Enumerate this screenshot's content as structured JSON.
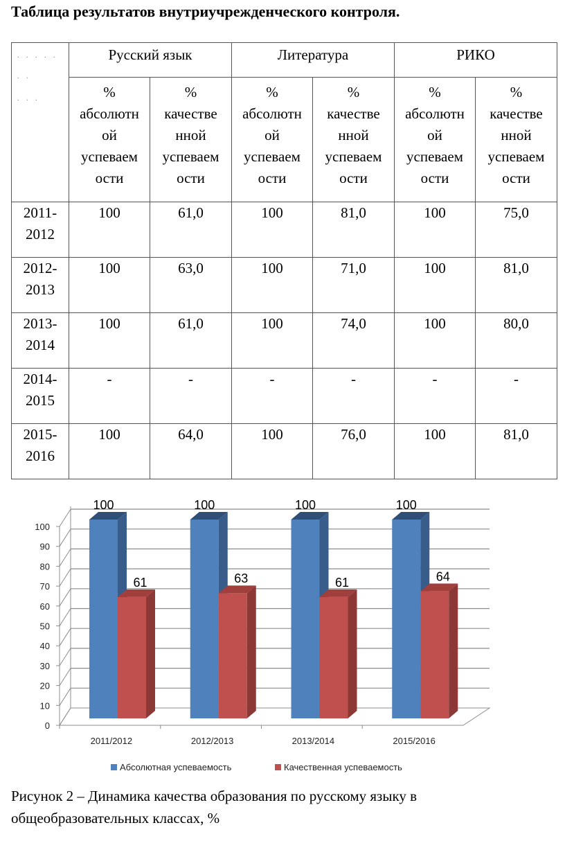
{
  "title": "Таблица результатов внутриучрежденческого контроля.",
  "table": {
    "corner_marks": [
      ". . . . .",
      ". .",
      ". . ."
    ],
    "subjects": [
      "Русский язык",
      "Литература",
      "РИКО"
    ],
    "col_headers": [
      [
        "%",
        "абсолютн",
        "ой",
        "успеваем",
        "ости"
      ],
      [
        "%",
        "качестве",
        "нной",
        "успеваем",
        "ости"
      ],
      [
        "%",
        "абсолютн",
        "ой",
        "успеваем",
        "ости"
      ],
      [
        "%",
        "качестве",
        "нной",
        "успеваем",
        "ости"
      ],
      [
        "%",
        "абсолютн",
        "ой",
        "успеваем",
        "ости"
      ],
      [
        "%",
        "качестве",
        "нной",
        "успеваем",
        "ости"
      ]
    ],
    "rows": [
      {
        "year": [
          "2011-",
          "2012"
        ],
        "cells": [
          "100",
          "61,0",
          "100",
          "81,0",
          "100",
          "75,0"
        ]
      },
      {
        "year": [
          "2012-",
          "2013"
        ],
        "cells": [
          "100",
          "63,0",
          "100",
          "71,0",
          "100",
          "81,0"
        ]
      },
      {
        "year": [
          "2013-",
          "2014"
        ],
        "cells": [
          "100",
          "61,0",
          "100",
          "74,0",
          "100",
          "80,0"
        ]
      },
      {
        "year": [
          "2014-",
          "2015"
        ],
        "cells": [
          "-",
          "-",
          "-",
          "-",
          "-",
          "-"
        ]
      },
      {
        "year": [
          "2015-",
          "2016"
        ],
        "cells": [
          "100",
          "64,0",
          "100",
          "76,0",
          "100",
          "81,0"
        ]
      }
    ]
  },
  "chart_data": {
    "type": "bar",
    "style": "3d-clustered-column",
    "categories": [
      "2011/2012",
      "2012/2013",
      "2013/2014",
      "2015/2016"
    ],
    "series": [
      {
        "name": "Абсолютная успеваемость",
        "values": [
          100,
          100,
          100,
          100
        ],
        "color": "#4F81BD",
        "labels": [
          "100",
          "100",
          "100",
          "100"
        ]
      },
      {
        "name": "Качественная успеваемость",
        "values": [
          61,
          63,
          61,
          64
        ],
        "color": "#C0504D",
        "labels": [
          "61",
          "63",
          "61",
          "64"
        ]
      }
    ],
    "yticks": [
      "0",
      "10",
      "20",
      "30",
      "40",
      "50",
      "60",
      "70",
      "80",
      "90",
      "100"
    ],
    "ylim": [
      0,
      100
    ],
    "grid": true,
    "legend": "bottom",
    "title": "",
    "xlabel": "",
    "ylabel": ""
  },
  "caption": [
    "Рисунок 2 – Динамика качества образования по русскому языку в",
    "общеобразовательных классах, %"
  ]
}
